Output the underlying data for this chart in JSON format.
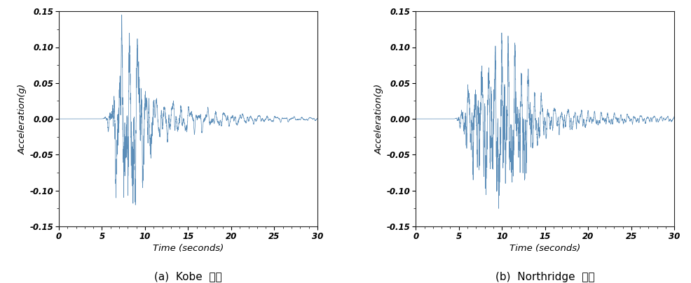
{
  "line_color": "#5B8DB8",
  "line_width": 0.5,
  "xlim": [
    0,
    30
  ],
  "ylim": [
    -0.15,
    0.15
  ],
  "xticks": [
    0,
    5,
    10,
    15,
    20,
    25,
    30
  ],
  "yticks": [
    -0.15,
    -0.1,
    -0.05,
    0.0,
    0.05,
    0.1,
    0.15
  ],
  "xlabel": "Time (seconds)",
  "ylabel": "Acceleration(g)",
  "caption_kobe": "(a)  Kobe  지진",
  "caption_northridge": "(b)  Northridge  지진",
  "background_color": "#ffffff",
  "axis_linewidth": 0.8,
  "tick_fontsize": 8.5,
  "label_fontsize": 9.5,
  "caption_fontsize": 11
}
